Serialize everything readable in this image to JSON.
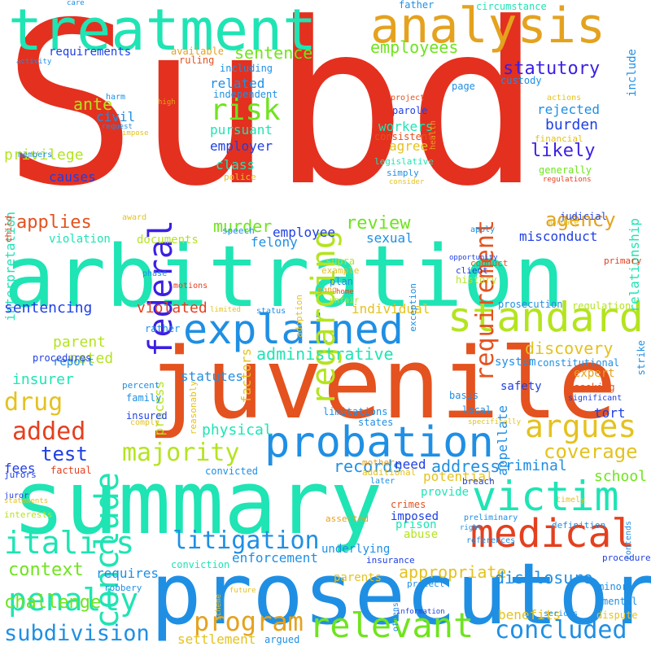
{
  "words": [
    {
      "text": "Subd",
      "color": "#e4301f"
    },
    {
      "text": "arbitration",
      "color": "#1fe4b4"
    },
    {
      "text": "juvenile",
      "color": "#e4521f"
    },
    {
      "text": "summary",
      "color": "#1fe4b4"
    },
    {
      "text": "prosecutor",
      "color": "#1f8fe4"
    },
    {
      "text": "treatment",
      "color": "#1fe4b4"
    },
    {
      "text": "analysis",
      "color": "#e4a21f"
    },
    {
      "text": "explained",
      "color": "#1f8fe4"
    },
    {
      "text": "standard",
      "color": "#b4e41f"
    },
    {
      "text": "probation",
      "color": "#1f8fe4"
    },
    {
      "text": "victim",
      "color": "#1fe4b4"
    },
    {
      "text": "medical",
      "color": "#e4401f"
    },
    {
      "text": "relevant",
      "color": "#6fe41f"
    },
    {
      "text": "federal",
      "color": "#3a1fe4"
    },
    {
      "text": "regarding",
      "color": "#b4e41f"
    },
    {
      "text": "conclude",
      "color": "#1fe4b4"
    },
    {
      "text": "argues",
      "color": "#e4c21f"
    },
    {
      "text": "risk",
      "color": "#6fe41f"
    },
    {
      "text": "requirement",
      "color": "#e4521f"
    },
    {
      "text": "penalty",
      "color": "#1fe4b4"
    },
    {
      "text": "italics",
      "color": "#1fe4b4"
    },
    {
      "text": "litigation",
      "color": "#1f8fe4"
    },
    {
      "text": "program",
      "color": "#e4a21f"
    },
    {
      "text": "majority",
      "color": "#b4e41f"
    },
    {
      "text": "concluded",
      "color": "#1f8fe4"
    },
    {
      "text": "subdivision",
      "color": "#1f8fe4"
    },
    {
      "text": "added",
      "color": "#e4401f"
    },
    {
      "text": "drug",
      "color": "#e4c21f"
    },
    {
      "text": "test",
      "color": "#1f3fe4"
    },
    {
      "text": "agency",
      "color": "#e4a21f"
    },
    {
      "text": "coverage",
      "color": "#e4c21f"
    },
    {
      "text": "context",
      "color": "#6fe41f"
    },
    {
      "text": "challenge",
      "color": "#6fe41f"
    },
    {
      "text": "appropriate",
      "color": "#e4c21f"
    },
    {
      "text": "statutory",
      "color": "#3a1fe4"
    },
    {
      "text": "employees",
      "color": "#6fe41f"
    },
    {
      "text": "administrative",
      "color": "#1fe4b4"
    },
    {
      "text": "applies",
      "color": "#e4521f"
    },
    {
      "text": "review",
      "color": "#6fe41f"
    },
    {
      "text": "sentence",
      "color": "#6fe41f"
    },
    {
      "text": "burden",
      "color": "#1f3fe4"
    },
    {
      "text": "likely",
      "color": "#3a1fe4"
    },
    {
      "text": "ante",
      "color": "#b4e41f"
    },
    {
      "text": "murder",
      "color": "#6fe41f"
    },
    {
      "text": "records",
      "color": "#1f8fe4"
    },
    {
      "text": "address",
      "color": "#1f8fe4"
    },
    {
      "text": "discovery",
      "color": "#e4c21f"
    },
    {
      "text": "disclosure",
      "color": "#1f8fe4"
    },
    {
      "text": "school",
      "color": "#6fe41f"
    },
    {
      "text": "criminal",
      "color": "#1f8fe4"
    },
    {
      "text": "enforcement",
      "color": "#1f8fe4"
    },
    {
      "text": "settlement",
      "color": "#e4c21f"
    },
    {
      "text": "benefits",
      "color": "#e4c21f"
    },
    {
      "text": "interpretation",
      "color": "#1fe4b4"
    },
    {
      "text": "relationship",
      "color": "#1fe4b4"
    },
    {
      "text": "insurer",
      "color": "#1fe4b4"
    },
    {
      "text": "privilege",
      "color": "#b4e41f"
    },
    {
      "text": "sentencing",
      "color": "#1f3fe4"
    },
    {
      "text": "parent",
      "color": "#b4e41f"
    },
    {
      "text": "violated",
      "color": "#e4401f"
    },
    {
      "text": "noted",
      "color": "#b4e41f"
    },
    {
      "text": "misconduct",
      "color": "#1f3fe4"
    },
    {
      "text": "employee",
      "color": "#1f3fe4"
    },
    {
      "text": "felony",
      "color": "#1f8fe4"
    },
    {
      "text": "physical",
      "color": "#1fe4b4"
    },
    {
      "text": "statutes",
      "color": "#1f8fe4"
    },
    {
      "text": "rejected",
      "color": "#1f8fe4"
    },
    {
      "text": "agree",
      "color": "#e4c21f"
    },
    {
      "text": "workers",
      "color": "#1fe4b4"
    },
    {
      "text": "class",
      "color": "#1fe4b4"
    },
    {
      "text": "employer",
      "color": "#1f3fe4"
    },
    {
      "text": "pursuant",
      "color": "#1fe4b4"
    },
    {
      "text": "civil",
      "color": "#1f8fe4"
    },
    {
      "text": "related",
      "color": "#1f8fe4"
    },
    {
      "text": "fees",
      "color": "#1f3fe4"
    },
    {
      "text": "potential",
      "color": "#e4c21f"
    },
    {
      "text": "prison",
      "color": "#1fe4b4"
    },
    {
      "text": "abuse",
      "color": "#b4e41f"
    },
    {
      "text": "crimes",
      "color": "#e4521f"
    },
    {
      "text": "need",
      "color": "#1f3fe4"
    },
    {
      "text": "sexual",
      "color": "#1f8fe4"
    },
    {
      "text": "requires",
      "color": "#1f8fe4"
    },
    {
      "text": "individual",
      "color": "#e4c21f"
    },
    {
      "text": "causes",
      "color": "#1f3fe4"
    },
    {
      "text": "process",
      "color": "#b4e41f"
    },
    {
      "text": "factors",
      "color": "#e4c21f"
    },
    {
      "text": "provide",
      "color": "#1fe4b4"
    },
    {
      "text": "imposed",
      "color": "#1f3fe4"
    },
    {
      "text": "underlying",
      "color": "#1f8fe4"
    },
    {
      "text": "parents",
      "color": "#e4c21f"
    },
    {
      "text": "system",
      "color": "#1f8fe4"
    },
    {
      "text": "safety",
      "color": "#1f3fe4"
    },
    {
      "text": "expert",
      "color": "#e4a21f"
    },
    {
      "text": "tort",
      "color": "#1f3fe4"
    },
    {
      "text": "requirements",
      "color": "#1f3fe4"
    },
    {
      "text": "include",
      "color": "#1f8fe4"
    },
    {
      "text": "appellate",
      "color": "#1f8fe4"
    },
    {
      "text": "report",
      "color": "#1f8fe4"
    },
    {
      "text": "history",
      "color": "#b4e41f"
    },
    {
      "text": "documents",
      "color": "#b4e41f"
    },
    {
      "text": "violation",
      "color": "#1fe4b4"
    },
    {
      "text": "procedures",
      "color": "#1f3fe4"
    },
    {
      "text": "conviction",
      "color": "#1fe4b4"
    },
    {
      "text": "father",
      "color": "#1f8fe4"
    },
    {
      "text": "circumstance",
      "color": "#1fe4b4"
    },
    {
      "text": "available",
      "color": "#e4a21f"
    },
    {
      "text": "ruling",
      "color": "#e4521f"
    },
    {
      "text": "independent",
      "color": "#1f8fe4"
    },
    {
      "text": "including",
      "color": "#1f8fe4"
    },
    {
      "text": "page",
      "color": "#1f8fe4"
    },
    {
      "text": "custody",
      "color": "#1f8fe4"
    },
    {
      "text": "primary",
      "color": "#e4401f"
    },
    {
      "text": "harm",
      "color": "#1f8fe4"
    },
    {
      "text": "request",
      "color": "#1f8fe4"
    },
    {
      "text": "impose",
      "color": "#e4c21f"
    },
    {
      "text": "members",
      "color": "#1f8fe4"
    },
    {
      "text": "police",
      "color": "#e4c21f"
    },
    {
      "text": "legislative",
      "color": "#1fe4b4"
    },
    {
      "text": "simply",
      "color": "#1f8fe4"
    },
    {
      "text": "consider",
      "color": "#e4c21f"
    },
    {
      "text": "consistent",
      "color": "#e4521f"
    },
    {
      "text": "parole",
      "color": "#1f3fe4"
    },
    {
      "text": "project",
      "color": "#e4521f"
    },
    {
      "text": "health",
      "color": "#e4a21f"
    },
    {
      "text": "actions",
      "color": "#e4c21f"
    },
    {
      "text": "financial",
      "color": "#e4c21f"
    },
    {
      "text": "generally",
      "color": "#6fe41f"
    },
    {
      "text": "regulations",
      "color": "#e4401f"
    },
    {
      "text": "judicial",
      "color": "#1f3fe4"
    },
    {
      "text": "mandate",
      "color": "#e4c21f"
    },
    {
      "text": "apply",
      "color": "#1f8fe4"
    },
    {
      "text": "conduct",
      "color": "#e4521f"
    },
    {
      "text": "opportunity",
      "color": "#1f3fe4"
    },
    {
      "text": "client",
      "color": "#1f3fe4"
    },
    {
      "text": "exception",
      "color": "#1f8fe4"
    },
    {
      "text": "example",
      "color": "#e4c21f"
    },
    {
      "text": "supra",
      "color": "#b4e41f"
    },
    {
      "text": "plan",
      "color": "#1f8fe4"
    },
    {
      "text": "gang",
      "color": "#e4a21f"
    },
    {
      "text": "home",
      "color": "#e4401f"
    },
    {
      "text": "adoption",
      "color": "#e4c21f"
    },
    {
      "text": "unfair",
      "color": "#b4e41f"
    },
    {
      "text": "status",
      "color": "#1f8fe4"
    },
    {
      "text": "prosecution",
      "color": "#1f8fe4"
    },
    {
      "text": "regulation",
      "color": "#b4e41f"
    },
    {
      "text": "constitutional",
      "color": "#1f8fe4"
    },
    {
      "text": "strike",
      "color": "#1f8fe4"
    },
    {
      "text": "seeking",
      "color": "#e4521f"
    },
    {
      "text": "significant",
      "color": "#1f3fe4"
    },
    {
      "text": "basis",
      "color": "#1f8fe4"
    },
    {
      "text": "local",
      "color": "#1f8fe4"
    },
    {
      "text": "states",
      "color": "#1f8fe4"
    },
    {
      "text": "limitations",
      "color": "#1f8fe4"
    },
    {
      "text": "specifically",
      "color": "#e4c21f"
    },
    {
      "text": "convicted",
      "color": "#1f8fe4"
    },
    {
      "text": "factual",
      "color": "#e4401f"
    },
    {
      "text": "additional",
      "color": "#e4c21f"
    },
    {
      "text": "mother",
      "color": "#e4a21f"
    },
    {
      "text": "later",
      "color": "#1f8fe4"
    },
    {
      "text": "breach",
      "color": "#1f3fe4"
    },
    {
      "text": "timely",
      "color": "#e4c21f"
    },
    {
      "text": "interests",
      "color": "#b4e41f"
    },
    {
      "text": "asserted",
      "color": "#e4a21f"
    },
    {
      "text": "preliminary",
      "color": "#1f8fe4"
    },
    {
      "text": "definition",
      "color": "#1f8fe4"
    },
    {
      "text": "contends",
      "color": "#1f8fe4"
    },
    {
      "text": "right",
      "color": "#1f8fe4"
    },
    {
      "text": "references",
      "color": "#1f8fe4"
    },
    {
      "text": "procedure",
      "color": "#1f3fe4"
    },
    {
      "text": "insurance",
      "color": "#1f3fe4"
    },
    {
      "text": "minor",
      "color": "#1f8fe4"
    },
    {
      "text": "mental",
      "color": "#1f8fe4"
    },
    {
      "text": "protect",
      "color": "#1f8fe4"
    },
    {
      "text": "offenses",
      "color": "#1f8fe4"
    },
    {
      "text": "information",
      "color": "#1f3fe4"
    },
    {
      "text": "serious",
      "color": "#1f8fe4"
    },
    {
      "text": "dispute",
      "color": "#e4c21f"
    },
    {
      "text": "robbery",
      "color": "#1f8fe4"
    },
    {
      "text": "argued",
      "color": "#1f8fe4"
    },
    {
      "text": "future",
      "color": "#e4c21f"
    },
    {
      "text": "scheme",
      "color": "#e4c21f"
    },
    {
      "text": "juror",
      "color": "#1f3fe4"
    },
    {
      "text": "jurors",
      "color": "#1f3fe4"
    },
    {
      "text": "comply",
      "color": "#e4c21f"
    },
    {
      "text": "insured",
      "color": "#1f3fe4"
    },
    {
      "text": "family",
      "color": "#1f8fe4"
    },
    {
      "text": "percent",
      "color": "#1f8fe4"
    },
    {
      "text": "reasonably",
      "color": "#e4c21f"
    },
    {
      "text": "rather",
      "color": "#1f8fe4"
    },
    {
      "text": "limited",
      "color": "#e4c21f"
    },
    {
      "text": "motions",
      "color": "#e4401f"
    },
    {
      "text": "phase",
      "color": "#1f8fe4"
    },
    {
      "text": "speech",
      "color": "#1f8fe4"
    },
    {
      "text": "award",
      "color": "#e4c21f"
    },
    {
      "text": "child",
      "color": "#e4401f"
    },
    {
      "text": "statements",
      "color": "#e4c21f"
    },
    {
      "text": "activity",
      "color": "#1f8fe4"
    },
    {
      "text": "care",
      "color": "#1f8fe4"
    },
    {
      "text": "high",
      "color": "#e4a21f"
    }
  ]
}
